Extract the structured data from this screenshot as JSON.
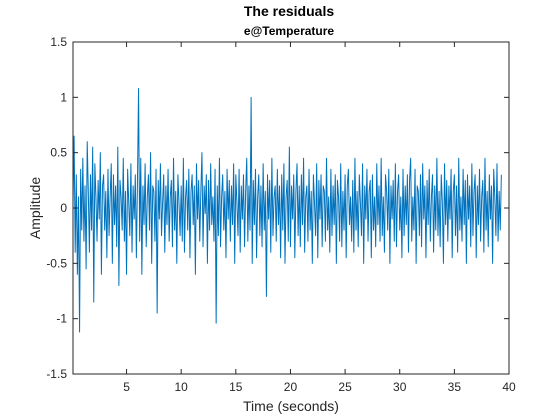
{
  "chart_data": {
    "type": "line",
    "title": "The residuals",
    "subtitle": "e@Temperature",
    "xlabel": "Time (seconds)",
    "ylabel": "Amplitude",
    "xlim": [
      0.1,
      40
    ],
    "ylim": [
      -1.5,
      1.5
    ],
    "xticks": [
      5,
      10,
      15,
      20,
      25,
      30,
      35,
      40
    ],
    "yticks": [
      -1.5,
      -1,
      -0.5,
      0,
      0.5,
      1,
      1.5
    ],
    "ytick_labels": [
      "-1.5",
      "-1",
      "-0.5",
      "0",
      "0.5",
      "1",
      "1.5"
    ],
    "grid": false,
    "line_color": "#0072BD",
    "series": [
      {
        "x_start": 0.1,
        "x_step": 0.1,
        "values": [
          0.05,
          0.65,
          -0.4,
          0.3,
          -0.6,
          0.1,
          -1.12,
          0.35,
          -0.2,
          0.45,
          -0.3,
          0.2,
          -0.55,
          0.6,
          0.15,
          -0.4,
          0.3,
          -0.2,
          0.55,
          -0.85,
          0.4,
          0.1,
          -0.3,
          0.25,
          -0.1,
          0.5,
          -0.6,
          0.2,
          0.3,
          -0.2,
          0.15,
          -0.45,
          0.35,
          -0.25,
          0.1,
          0.4,
          -0.5,
          0.3,
          -0.15,
          0.2,
          -0.35,
          0.55,
          -0.7,
          0.25,
          0.1,
          -0.2,
          0.45,
          -0.3,
          0.15,
          -0.6,
          0.35,
          0.05,
          -0.25,
          0.4,
          -0.4,
          0.2,
          -0.1,
          0.3,
          -0.45,
          0.25,
          1.08,
          -0.3,
          0.45,
          -0.6,
          0.2,
          -0.15,
          0.4,
          -0.35,
          0.1,
          0.3,
          -0.2,
          0.5,
          -0.5,
          0.2,
          0.15,
          -0.3,
          0.35,
          -0.95,
          0.25,
          -0.1,
          0.4,
          -0.25,
          0.05,
          0.3,
          -0.4,
          0.2,
          -0.15,
          0.35,
          -0.3,
          0.1,
          0.25,
          -0.35,
          0.45,
          -0.2,
          0.15,
          -0.5,
          0.3,
          0.05,
          -0.25,
          0.2,
          -0.3,
          0.45,
          -0.4,
          0.1,
          0.25,
          -0.2,
          0.35,
          -0.45,
          0.15,
          0.3,
          -0.15,
          0.2,
          -0.6,
          0.4,
          -0.1,
          0.25,
          -0.3,
          0.15,
          0.5,
          -0.35,
          0.2,
          -0.05,
          0.3,
          -0.5,
          0.25,
          -0.2,
          0.4,
          -0.15,
          0.1,
          -0.3,
          0.35,
          -1.04,
          0.2,
          -0.25,
          0.45,
          -0.35,
          0.1,
          0.3,
          -0.2,
          0.15,
          -0.45,
          0.35,
          -0.1,
          0.25,
          -0.3,
          0.2,
          -0.15,
          0.4,
          -0.5,
          0.3,
          0.05,
          -0.25,
          0.35,
          -0.4,
          0.2,
          -0.1,
          0.3,
          -0.35,
          0.15,
          0.45,
          -0.3,
          0.2,
          -0.2,
          1.0,
          -0.5,
          0.25,
          -0.15,
          0.35,
          -0.45,
          0.1,
          0.3,
          -0.25,
          0.2,
          -0.35,
          0.4,
          -0.2,
          0.15,
          -0.8,
          0.3,
          -0.1,
          0.25,
          -0.4,
          0.45,
          -0.25,
          0.1,
          0.2,
          -0.3,
          0.35,
          -0.15,
          0.2,
          -0.45,
          0.3,
          -0.2,
          0.4,
          -0.5,
          0.1,
          0.25,
          -0.3,
          0.55,
          -0.35,
          0.2,
          -0.1,
          0.3,
          -0.45,
          0.15,
          0.4,
          -0.25,
          0.2,
          -0.35,
          0.3,
          -0.15,
          0.45,
          -0.4,
          0.1,
          0.2,
          -0.3,
          0.35,
          -0.2,
          0.15,
          -0.5,
          0.3,
          0.05,
          -0.25,
          0.4,
          -0.45,
          0.25,
          -0.1,
          0.3,
          -0.35,
          0.2,
          0.15,
          -0.3,
          0.45,
          -0.2,
          0.1,
          -0.4,
          0.35,
          -0.25,
          0.2,
          -0.15,
          0.3,
          -0.5,
          0.25,
          0.1,
          -0.3,
          0.4,
          -0.35,
          0.15,
          -0.2,
          0.3,
          -0.45,
          0.2,
          0.35,
          -0.15,
          0.1,
          -0.3,
          0.25,
          -0.4,
          0.45,
          -0.2,
          0.15,
          -0.35,
          0.3,
          0.05,
          -0.25,
          0.4,
          -0.5,
          0.2,
          -0.1,
          0.35,
          -0.3,
          0.15,
          0.25,
          -0.45,
          0.3,
          -0.2,
          0.1,
          -0.35,
          0.4,
          -0.15,
          0.2,
          -0.3,
          0.45,
          -0.25,
          0.1,
          -0.4,
          0.3,
          0.15,
          -0.2,
          0.35,
          -0.5,
          0.2,
          -0.1,
          0.25,
          -0.3,
          0.4,
          -0.35,
          0.15,
          0.3,
          -0.2,
          0.1,
          -0.45,
          0.35,
          -0.25,
          0.2,
          -0.15,
          0.3,
          -0.4,
          0.25,
          0.45,
          -0.3,
          0.1,
          -0.2,
          0.35,
          -0.5,
          0.2,
          0.15,
          -0.25,
          0.3,
          -0.35,
          0.4,
          -0.1,
          0.2,
          -0.45,
          0.25,
          -0.15,
          0.35,
          -0.3,
          0.1,
          0.3,
          -0.4,
          0.2,
          -0.2,
          0.45,
          -0.25,
          0.15,
          -0.35,
          0.3,
          0.05,
          -0.5,
          0.4,
          -0.15,
          0.25,
          -0.3,
          0.2,
          -0.1,
          0.35,
          -0.45,
          0.15,
          0.3,
          -0.25,
          0.2,
          -0.4,
          0.45,
          -0.2,
          0.1,
          -0.3,
          0.35,
          -0.15,
          0.25,
          -0.5,
          0.3,
          -0.1,
          0.2,
          -0.35,
          0.4,
          -0.25,
          0.15,
          0.3,
          -0.45,
          0.2,
          -0.15,
          0.35,
          -0.3,
          0.1,
          0.25,
          -0.4,
          0.45,
          -0.2,
          0.15,
          -0.35,
          0.3,
          -0.1,
          0.2,
          -0.5,
          0.35,
          0.1,
          -0.25,
          0.4,
          -0.3,
          0.15,
          -0.2,
          0.3
        ]
      }
    ]
  }
}
